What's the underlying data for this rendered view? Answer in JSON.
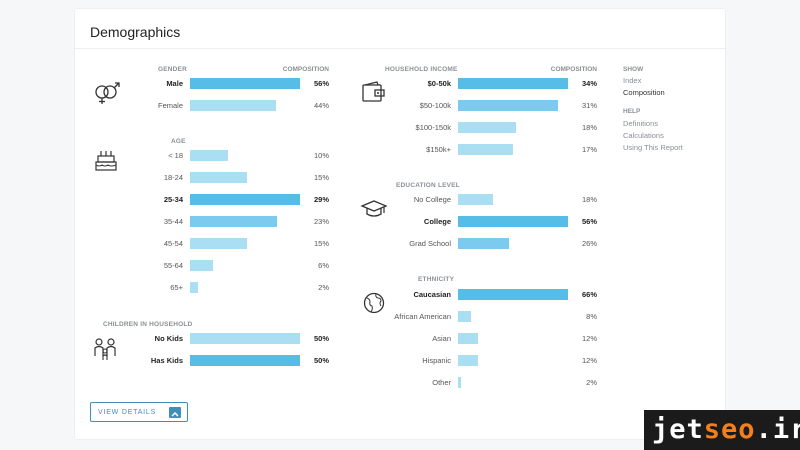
{
  "title": "Demographics",
  "colors": {
    "primary": "#55bde6",
    "light": "#a9def3",
    "medium": "#7ccbee"
  },
  "gender": {
    "title": "GENDER",
    "col": "COMPOSITION",
    "rows": [
      {
        "label": "Male",
        "value": 56,
        "pct": "56%",
        "hl": true
      },
      {
        "label": "Female",
        "value": 44,
        "pct": "44%",
        "hl": false
      }
    ]
  },
  "age": {
    "title": "AGE",
    "rows": [
      {
        "label": "< 18",
        "value": 10,
        "pct": "10%",
        "hl": false
      },
      {
        "label": "18-24",
        "value": 15,
        "pct": "15%",
        "hl": false
      },
      {
        "label": "25-34",
        "value": 29,
        "pct": "29%",
        "hl": true
      },
      {
        "label": "35-44",
        "value": 23,
        "pct": "23%",
        "hl": false
      },
      {
        "label": "45-54",
        "value": 15,
        "pct": "15%",
        "hl": false
      },
      {
        "label": "55-64",
        "value": 6,
        "pct": "6%",
        "hl": false
      },
      {
        "label": "65+",
        "value": 2,
        "pct": "2%",
        "hl": false
      }
    ]
  },
  "kids": {
    "title": "CHILDREN IN HOUSEHOLD",
    "rows": [
      {
        "label": "No Kids",
        "value": 50,
        "pct": "50%",
        "hl": true
      },
      {
        "label": "Has Kids",
        "value": 50,
        "pct": "50%",
        "hl": true
      }
    ]
  },
  "income": {
    "title": "HOUSEHOLD INCOME",
    "col": "COMPOSITION",
    "rows": [
      {
        "label": "$0-50k",
        "value": 34,
        "pct": "34%",
        "hl": true
      },
      {
        "label": "$50-100k",
        "value": 31,
        "pct": "31%",
        "hl": false
      },
      {
        "label": "$100-150k",
        "value": 18,
        "pct": "18%",
        "hl": false
      },
      {
        "label": "$150k+",
        "value": 17,
        "pct": "17%",
        "hl": false
      }
    ]
  },
  "education": {
    "title": "EDUCATION LEVEL",
    "rows": [
      {
        "label": "No College",
        "value": 18,
        "pct": "18%",
        "hl": false
      },
      {
        "label": "College",
        "value": 56,
        "pct": "56%",
        "hl": true
      },
      {
        "label": "Grad School",
        "value": 26,
        "pct": "26%",
        "hl": false
      }
    ]
  },
  "ethnicity": {
    "title": "ETHNICITY",
    "rows": [
      {
        "label": "Caucasian",
        "value": 66,
        "pct": "66%",
        "hl": true
      },
      {
        "label": "African American",
        "value": 8,
        "pct": "8%",
        "hl": false
      },
      {
        "label": "Asian",
        "value": 12,
        "pct": "12%",
        "hl": false
      },
      {
        "label": "Hispanic",
        "value": 12,
        "pct": "12%",
        "hl": false
      },
      {
        "label": "Other",
        "value": 2,
        "pct": "2%",
        "hl": false
      }
    ]
  },
  "sidebar": {
    "show_title": "SHOW",
    "show_items": [
      "Index",
      "Composition"
    ],
    "help_title": "HELP",
    "help_items": [
      "Definitions",
      "Calculations",
      "Using This Report"
    ]
  },
  "button": {
    "label": "VIEW DETAILS"
  },
  "watermark": {
    "part1": "jet",
    "part2": "seo",
    "part3": ".ir"
  }
}
